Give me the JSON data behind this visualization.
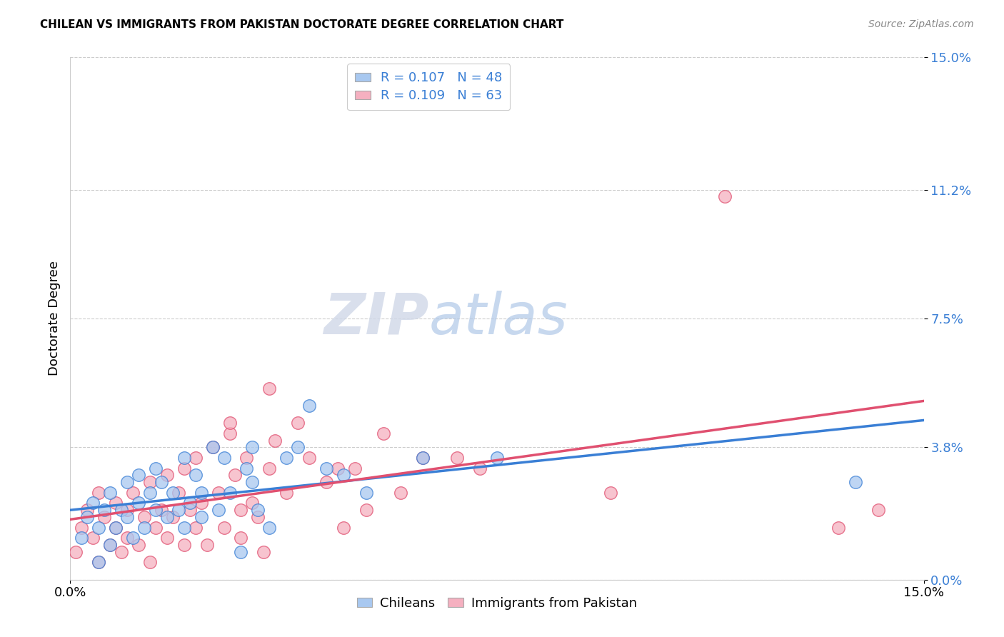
{
  "title": "CHILEAN VS IMMIGRANTS FROM PAKISTAN DOCTORATE DEGREE CORRELATION CHART",
  "source": "Source: ZipAtlas.com",
  "ylabel": "Doctorate Degree",
  "ytick_values": [
    0.0,
    3.8,
    7.5,
    11.2,
    15.0
  ],
  "xlim": [
    0.0,
    15.0
  ],
  "ylim": [
    0.0,
    15.0
  ],
  "blue_color": "#a8c8f0",
  "pink_color": "#f5b0c0",
  "blue_line_color": "#3a7fd5",
  "pink_line_color": "#e05070",
  "watermark_zip": "ZIP",
  "watermark_atlas": "atlas",
  "chileans_x": [
    0.2,
    0.3,
    0.4,
    0.5,
    0.5,
    0.6,
    0.7,
    0.7,
    0.8,
    0.9,
    1.0,
    1.0,
    1.1,
    1.2,
    1.2,
    1.3,
    1.4,
    1.5,
    1.5,
    1.6,
    1.7,
    1.8,
    1.9,
    2.0,
    2.0,
    2.1,
    2.2,
    2.3,
    2.3,
    2.5,
    2.6,
    2.7,
    2.8,
    3.0,
    3.1,
    3.2,
    3.2,
    3.3,
    3.5,
    3.8,
    4.0,
    4.2,
    4.5,
    4.8,
    5.2,
    6.2,
    7.5,
    13.8
  ],
  "chileans_y": [
    1.2,
    1.8,
    2.2,
    0.5,
    1.5,
    2.0,
    1.0,
    2.5,
    1.5,
    2.0,
    1.8,
    2.8,
    1.2,
    2.2,
    3.0,
    1.5,
    2.5,
    2.0,
    3.2,
    2.8,
    1.8,
    2.5,
    2.0,
    1.5,
    3.5,
    2.2,
    3.0,
    1.8,
    2.5,
    3.8,
    2.0,
    3.5,
    2.5,
    0.8,
    3.2,
    2.8,
    3.8,
    2.0,
    1.5,
    3.5,
    3.8,
    5.0,
    3.2,
    3.0,
    2.5,
    3.5,
    3.5,
    2.8
  ],
  "pakistan_x": [
    0.1,
    0.2,
    0.3,
    0.4,
    0.5,
    0.5,
    0.6,
    0.7,
    0.8,
    0.8,
    0.9,
    1.0,
    1.0,
    1.1,
    1.2,
    1.3,
    1.4,
    1.4,
    1.5,
    1.6,
    1.7,
    1.7,
    1.8,
    1.9,
    2.0,
    2.0,
    2.1,
    2.2,
    2.2,
    2.3,
    2.4,
    2.5,
    2.6,
    2.7,
    2.8,
    2.9,
    3.0,
    3.0,
    3.1,
    3.2,
    3.3,
    3.4,
    3.5,
    3.6,
    3.8,
    4.0,
    4.2,
    4.5,
    4.8,
    5.0,
    5.2,
    5.5,
    6.2,
    7.2,
    9.5,
    11.5,
    13.5,
    14.2,
    4.7,
    5.8,
    6.8,
    2.8,
    3.5
  ],
  "pakistan_y": [
    0.8,
    1.5,
    2.0,
    1.2,
    0.5,
    2.5,
    1.8,
    1.0,
    2.2,
    1.5,
    0.8,
    2.0,
    1.2,
    2.5,
    1.0,
    1.8,
    0.5,
    2.8,
    1.5,
    2.0,
    1.2,
    3.0,
    1.8,
    2.5,
    1.0,
    3.2,
    2.0,
    1.5,
    3.5,
    2.2,
    1.0,
    3.8,
    2.5,
    1.5,
    4.2,
    3.0,
    2.0,
    1.2,
    3.5,
    2.2,
    1.8,
    0.8,
    3.2,
    4.0,
    2.5,
    4.5,
    3.5,
    2.8,
    1.5,
    3.2,
    2.0,
    4.2,
    3.5,
    3.2,
    2.5,
    11.0,
    1.5,
    2.0,
    3.2,
    2.5,
    3.5,
    4.5,
    5.5
  ]
}
